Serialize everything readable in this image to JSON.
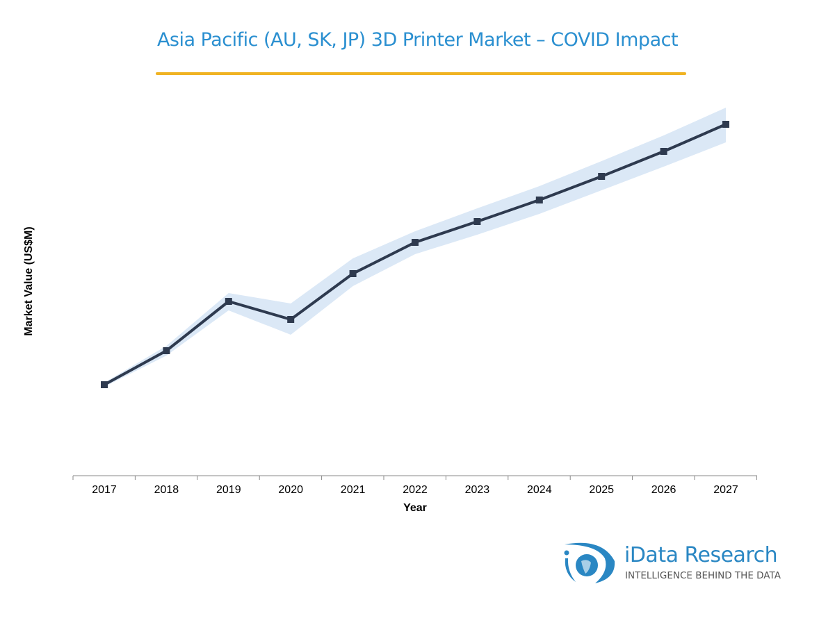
{
  "chart_data": {
    "type": "line",
    "title": "Asia Pacific (AU, SK, JP) 3D Printer Market – COVID Impact",
    "xlabel": "Year",
    "ylabel": "Market Value (US$M)",
    "categories": [
      "2017",
      "2018",
      "2019",
      "2020",
      "2021",
      "2022",
      "2023",
      "2024",
      "2025",
      "2026",
      "2027"
    ],
    "series": [
      {
        "name": "Market Value",
        "values": [
          131,
          180,
          251,
          225,
          291,
          336,
          366,
          397,
          431,
          467,
          506
        ]
      },
      {
        "name": "Upper bound",
        "values": [
          134,
          187,
          263,
          248,
          313,
          352,
          385,
          417,
          453,
          490,
          530
        ]
      },
      {
        "name": "Lower bound",
        "values": [
          128,
          173,
          238,
          203,
          273,
          319,
          347,
          377,
          411,
          445,
          480
        ]
      }
    ],
    "ylim": [
      0,
      560
    ],
    "y_ticks_shown": false,
    "grid": false,
    "colors": {
      "line": "#2e3a4f",
      "band": "#dbe8f6",
      "title": "#2a8fd0",
      "rule": "#f0b323"
    }
  },
  "logo": {
    "name": "iData Research",
    "tagline": "INTELLIGENCE BEHIND THE DATA"
  }
}
